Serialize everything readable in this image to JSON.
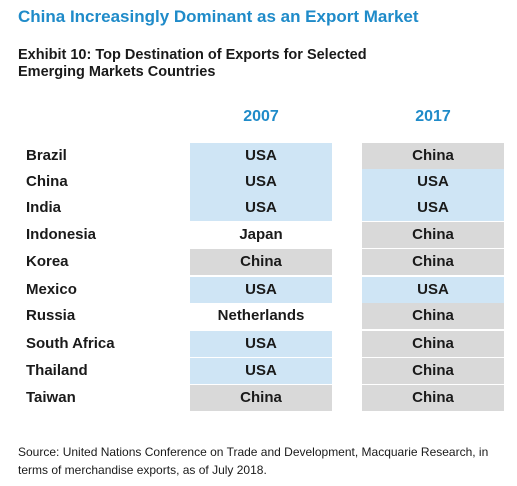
{
  "page": {
    "title": "China Increasingly Dominant as an Export Market",
    "source_note": "Source: United Nations Conference on Trade and Development, Macquarie Research, in terms of merchandise exports, as of July 2018."
  },
  "colors": {
    "title_blue": "#1f8bc9",
    "usa_fill": "#cfe5f5",
    "china_fill": "#d9d9d9",
    "other_fill": "#ffffff"
  },
  "chart_data": {
    "type": "table",
    "title": "Exhibit 10: Top Destination of Exports for Selected Emerging Markets Countries",
    "columns": [
      "2007",
      "2017"
    ],
    "rows": [
      {
        "country": "Brazil",
        "values": [
          "USA",
          "China"
        ]
      },
      {
        "country": "China",
        "values": [
          "USA",
          "USA"
        ]
      },
      {
        "country": "India",
        "values": [
          "USA",
          "USA"
        ]
      },
      {
        "country": "Indonesia",
        "values": [
          "Japan",
          "China"
        ]
      },
      {
        "country": "Korea",
        "values": [
          "China",
          "China"
        ]
      },
      {
        "country": "Mexico",
        "values": [
          "USA",
          "USA"
        ]
      },
      {
        "country": "Russia",
        "values": [
          "Netherlands",
          "China"
        ]
      },
      {
        "country": "South Africa",
        "values": [
          "USA",
          "China"
        ]
      },
      {
        "country": "Thailand",
        "values": [
          "USA",
          "China"
        ]
      },
      {
        "country": "Taiwan",
        "values": [
          "China",
          "China"
        ]
      }
    ]
  }
}
